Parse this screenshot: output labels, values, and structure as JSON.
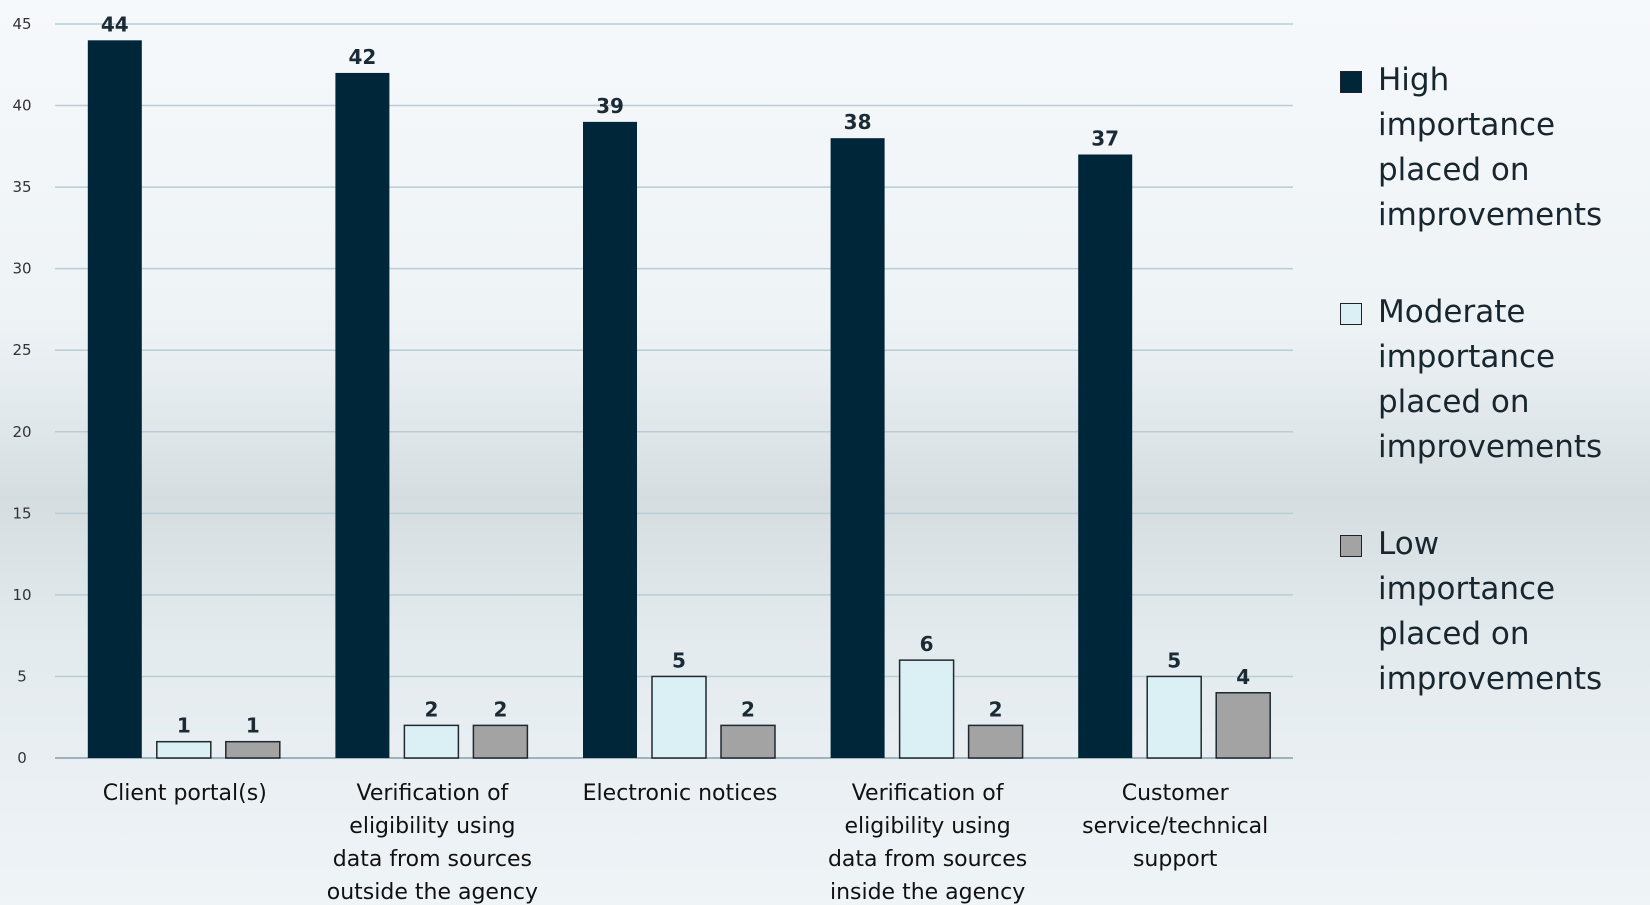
{
  "chart_data": {
    "type": "bar",
    "title": "",
    "xlabel": "",
    "ylabel": "",
    "ylim": [
      0,
      45
    ],
    "yticks": [
      0,
      5,
      10,
      15,
      20,
      25,
      30,
      35,
      40,
      45
    ],
    "grid": true,
    "legend_position": "right",
    "categories": [
      "Client portal(s)",
      "Verification of eligibility using data from sources outside the agency",
      "Electronic notices",
      "Verification of eligibility using data from sources inside the agency",
      "Customer service/technical support"
    ],
    "category_lines": [
      [
        "Client portal(s)"
      ],
      [
        "Verification of",
        "eligibility using",
        "data from sources",
        "outside the agency"
      ],
      [
        "Electronic notices"
      ],
      [
        "Verification of",
        "eligibility using",
        "data from sources",
        "inside the agency"
      ],
      [
        "Customer",
        "service/technical",
        "support"
      ]
    ],
    "series": [
      {
        "name": "High importance placed on improvements",
        "name_lines": [
          "High",
          "importance",
          "placed on",
          "improvements"
        ],
        "color": "#00263a",
        "values": [
          44,
          42,
          39,
          38,
          37
        ]
      },
      {
        "name": "Moderate importance placed on improvements",
        "name_lines": [
          "Moderate",
          "importance",
          "placed on",
          "improvements"
        ],
        "color": "#daf0f5",
        "values": [
          1,
          2,
          5,
          6,
          5
        ]
      },
      {
        "name": "Low importance placed on improvements",
        "name_lines": [
          "Low",
          "importance",
          "placed on",
          "improvements"
        ],
        "color": "#a3a3a3",
        "values": [
          1,
          2,
          2,
          2,
          4
        ]
      }
    ]
  }
}
